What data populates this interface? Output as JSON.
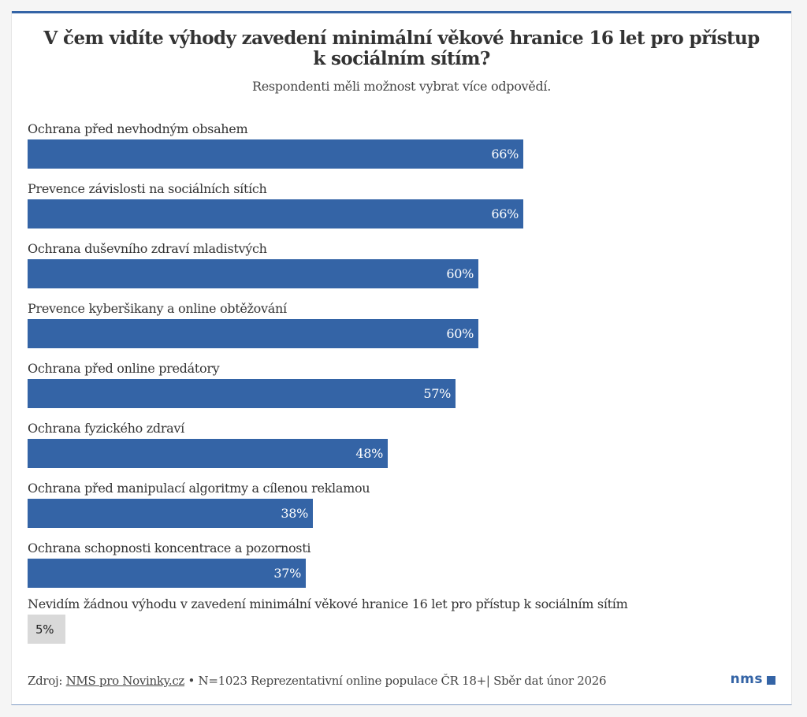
{
  "colors": {
    "accent": "#3464a6",
    "neutral_bar": "#d9d9d9",
    "text": "#333333"
  },
  "chart_data": {
    "type": "bar",
    "orientation": "horizontal",
    "title": "V čem vidíte výhody zavedení minimální věkové hranice 16 let pro přístup k sociálním sítím?",
    "title_lines": [
      "V čem vidíte výhody zavedení minimální věkové hranice 16 let pro přístup",
      "k sociálním sítím?"
    ],
    "subtitle": "Respondenti měli možnost vybrat více odpovědí.",
    "xlim": [
      0,
      100
    ],
    "unit": "%",
    "grid": false,
    "categories": [
      "Ochrana před nevhodným obsahem",
      "Prevence závislosti na sociálních sítích",
      "Ochrana duševního zdraví mladistvých",
      "Prevence kyberšikany a online obtěžování",
      "Ochrana před online predátory",
      "Ochrana fyzického zdraví",
      "Ochrana před manipulací algoritmy a cílenou reklamou",
      "Ochrana schopnosti koncentrace a pozornosti",
      "Nevidím žádnou výhodu v zavedení minimální věkové hranice 16 let pro přístup k sociálním sítím"
    ],
    "values": [
      66,
      66,
      60,
      60,
      57,
      48,
      38,
      37,
      5
    ],
    "value_labels": [
      "66%",
      "66%",
      "60%",
      "60%",
      "57%",
      "48%",
      "38%",
      "37%",
      "5%"
    ],
    "neutral": [
      false,
      false,
      false,
      false,
      false,
      false,
      false,
      false,
      true
    ]
  },
  "footer": {
    "source_prefix": "Zdroj: ",
    "source_link": "NMS pro Novinky.cz",
    "details": " • N=1023 Reprezentativní online populace ČR 18+| Sběr dat únor 2026"
  },
  "logo": {
    "text": "nms"
  }
}
